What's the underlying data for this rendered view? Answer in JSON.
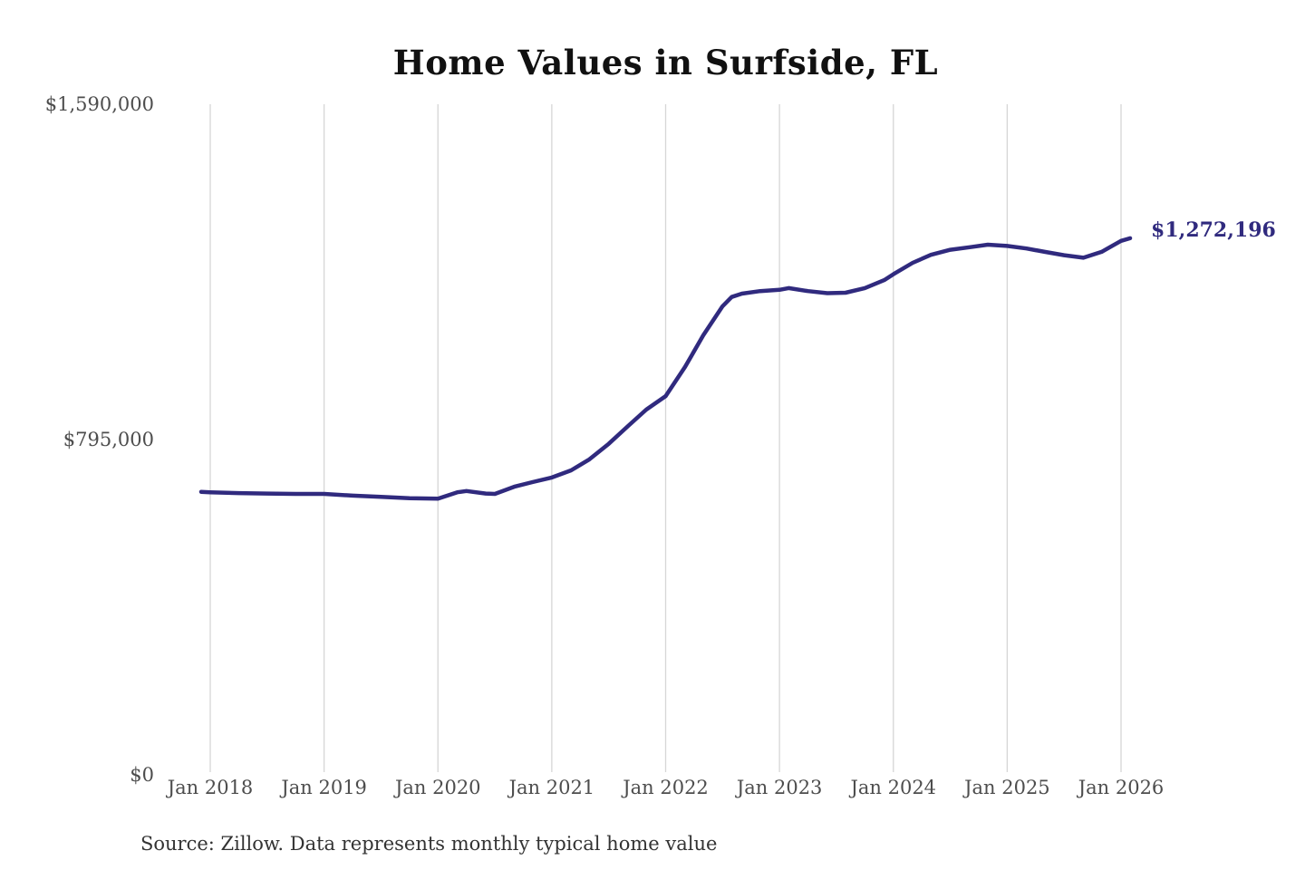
{
  "page": {
    "title": "Home Values in Surfside, FL",
    "source_note": "Source: Zillow. Data represents monthly typical home value"
  },
  "chart_data": {
    "type": "line",
    "title": "Home Values in Surfside, FL",
    "series_name": "Monthly typical home value",
    "line_color": "#302a7e",
    "grid_color": "#d6d6d6",
    "axis_label_color": "#4d4d4d",
    "grid": "vertical-only",
    "legend": "none",
    "end_label": "$1,272,196",
    "end_value": 1272196,
    "y_domain": [
      0,
      1590000
    ],
    "x_domain": [
      2017.9,
      2026.2
    ],
    "y_ticks": [
      {
        "value": 1590000,
        "label": "$1,590,000"
      },
      {
        "value": 795000,
        "label": "$795,000"
      },
      {
        "value": 0,
        "label": "$0"
      }
    ],
    "x_ticks": [
      {
        "t": 2018,
        "label": "Jan 2018"
      },
      {
        "t": 2019,
        "label": "Jan 2019"
      },
      {
        "t": 2020,
        "label": "Jan 2020"
      },
      {
        "t": 2021,
        "label": "Jan 2021"
      },
      {
        "t": 2022,
        "label": "Jan 2022"
      },
      {
        "t": 2023,
        "label": "Jan 2023"
      },
      {
        "t": 2024,
        "label": "Jan 2024"
      },
      {
        "t": 2025,
        "label": "Jan 2025"
      },
      {
        "t": 2026,
        "label": "Jan 2026"
      }
    ],
    "points": [
      [
        2017.92,
        671000
      ],
      [
        2018.0,
        670000
      ],
      [
        2018.25,
        668000
      ],
      [
        2018.5,
        667000
      ],
      [
        2018.75,
        666000
      ],
      [
        2019.0,
        666000
      ],
      [
        2019.25,
        662000
      ],
      [
        2019.5,
        659000
      ],
      [
        2019.75,
        656000
      ],
      [
        2020.0,
        655000
      ],
      [
        2020.17,
        670000
      ],
      [
        2020.25,
        673000
      ],
      [
        2020.42,
        667000
      ],
      [
        2020.5,
        666000
      ],
      [
        2020.67,
        683000
      ],
      [
        2020.83,
        694000
      ],
      [
        2021.0,
        705000
      ],
      [
        2021.17,
        722000
      ],
      [
        2021.33,
        748000
      ],
      [
        2021.5,
        785000
      ],
      [
        2021.67,
        827000
      ],
      [
        2021.83,
        866000
      ],
      [
        2022.0,
        898000
      ],
      [
        2022.17,
        967000
      ],
      [
        2022.33,
        1042000
      ],
      [
        2022.5,
        1111000
      ],
      [
        2022.58,
        1133000
      ],
      [
        2022.67,
        1141000
      ],
      [
        2022.83,
        1147000
      ],
      [
        2023.0,
        1150000
      ],
      [
        2023.08,
        1154000
      ],
      [
        2023.25,
        1147000
      ],
      [
        2023.42,
        1142000
      ],
      [
        2023.58,
        1143000
      ],
      [
        2023.75,
        1154000
      ],
      [
        2023.92,
        1173000
      ],
      [
        2024.0,
        1187000
      ],
      [
        2024.17,
        1214000
      ],
      [
        2024.33,
        1233000
      ],
      [
        2024.5,
        1245000
      ],
      [
        2024.67,
        1251000
      ],
      [
        2024.83,
        1257000
      ],
      [
        2025.0,
        1254000
      ],
      [
        2025.17,
        1248000
      ],
      [
        2025.33,
        1240000
      ],
      [
        2025.5,
        1232000
      ],
      [
        2025.67,
        1226000
      ],
      [
        2025.83,
        1240000
      ],
      [
        2025.92,
        1254000
      ],
      [
        2026.0,
        1266000
      ],
      [
        2026.08,
        1272196
      ]
    ]
  }
}
